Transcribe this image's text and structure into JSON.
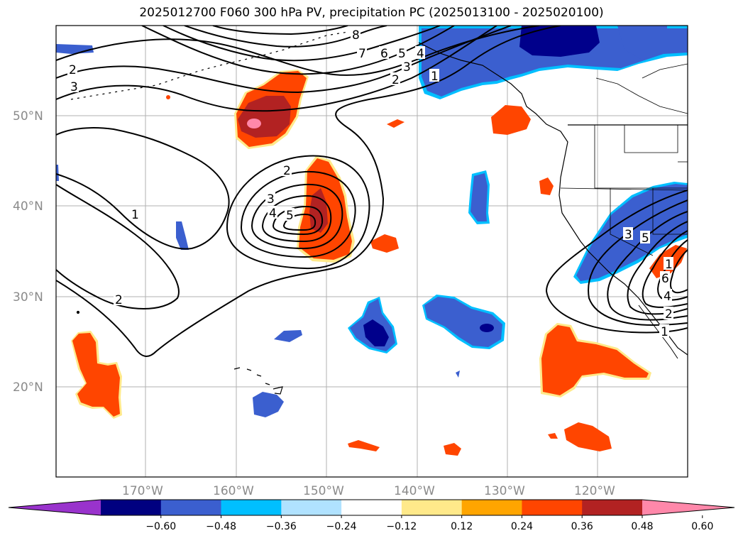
{
  "title": "2025012700 F060 300 hPa PV, precipitation PC (2025013100 - 2025020100)",
  "lat_labels": [
    "50°N",
    "40°N",
    "30°N",
    "20°N"
  ],
  "lon_labels": [
    "170°W",
    "160°W",
    "150°W",
    "140°W",
    "130°W",
    "120°W"
  ],
  "colorbar": {
    "ticks": [
      "−0.60",
      "−0.48",
      "−0.36",
      "−0.24",
      "−0.12",
      "0.12",
      "0.24",
      "0.36",
      "0.48",
      "0.60"
    ],
    "colors": [
      "#9933cc",
      "#000080",
      "#3b5fcf",
      "#00bfff",
      "#b0e2ff",
      "#ffffff",
      "#ffe98a",
      "#ffa500",
      "#ff4500",
      "#b22222",
      "#ff88aa"
    ]
  },
  "contour_labels": {
    "c1": "1",
    "c2": "2",
    "c3": "3",
    "c4": "4",
    "c5": "5",
    "c6": "6",
    "c7": "7",
    "c8": "8"
  },
  "colors": {
    "neg_strong": "#00008b",
    "neg_mid": "#3b5fcf",
    "neg_edge": "#00bfff",
    "pos_mid": "#ff4500",
    "pos_edge": "#ffe98a",
    "pos_strong": "#b22222",
    "pos_max": "#ff88aa"
  }
}
